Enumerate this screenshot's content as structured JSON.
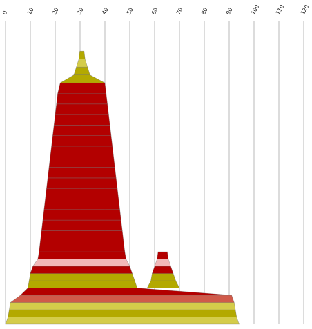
{
  "chart_data": {
    "type": "area",
    "title": "",
    "xlabel": "",
    "ylabel": "",
    "x_axis": {
      "position": "top",
      "min": 0,
      "max": 120,
      "ticks": [
        "0",
        "10",
        "20",
        "30",
        "40",
        "50",
        "60",
        "70",
        "80",
        "90",
        "100",
        "110",
        "120"
      ],
      "tick_label_rotation": -60
    },
    "y_axis": {
      "visible": false,
      "min": 0,
      "max": 16
    },
    "grid": "vertical lines",
    "legend": "none",
    "colors": {
      "dark_red": "#b30000",
      "olive": "#b3a900",
      "light_olive": "#d4cc4a",
      "salmon": "#d05a4a",
      "pink": "#f2b8b8",
      "outline": "#6e6e6e"
    },
    "layers": [
      {
        "level": 1,
        "ranges": [
          [
            0,
            94
          ]
        ],
        "color": "light_olive"
      },
      {
        "level": 2,
        "ranges": [
          [
            1,
            93
          ]
        ],
        "color": "olive"
      },
      {
        "level": 3,
        "ranges": [
          [
            1.5,
            92.5
          ]
        ],
        "color": "light_olive"
      },
      {
        "level": 4,
        "ranges": [
          [
            2,
            92
          ]
        ],
        "color": "salmon"
      },
      {
        "level": 5,
        "ranges": [
          [
            6,
            91
          ]
        ],
        "color": "dark_red"
      },
      {
        "level": 6,
        "ranges": [
          [
            9,
            53
          ],
          [
            57,
            70
          ]
        ],
        "color": "olive"
      },
      {
        "level": 7,
        "ranges": [
          [
            9.5,
            52
          ],
          [
            58.5,
            68.5
          ]
        ],
        "color": "olive"
      },
      {
        "level": 8,
        "ranges": [
          [
            10,
            51
          ],
          [
            59,
            67.5
          ]
        ],
        "color": "dark_red"
      },
      {
        "level": 9,
        "ranges": [
          [
            11,
            50
          ],
          [
            60,
            66.5
          ]
        ],
        "color": "pink"
      },
      {
        "level": 10,
        "ranges": [
          [
            13,
            48.5
          ],
          [
            61,
            65.5
          ]
        ],
        "color": "dark_red"
      },
      {
        "level": 11,
        "ranges": [
          [
            13.5,
            48
          ]
        ],
        "color": "dark_red"
      },
      {
        "level": 12,
        "ranges": [
          [
            14,
            47.5
          ]
        ],
        "color": "dark_red"
      },
      {
        "level": 13,
        "ranges": [
          [
            14.5,
            47
          ]
        ],
        "color": "dark_red"
      },
      {
        "level": 14,
        "ranges": [
          [
            15,
            46.5
          ]
        ],
        "color": "dark_red"
      },
      {
        "level": 15,
        "ranges": [
          [
            15.5,
            46
          ]
        ],
        "color": "dark_red"
      },
      {
        "level": 16,
        "ranges": [
          [
            16,
            45.5
          ]
        ],
        "color": "dark_red"
      },
      {
        "level": 17,
        "ranges": [
          [
            16.5,
            45
          ]
        ],
        "color": "dark_red"
      },
      {
        "level": 18,
        "ranges": [
          [
            17,
            44.5
          ]
        ],
        "color": "dark_red"
      },
      {
        "level": 19,
        "ranges": [
          [
            17.5,
            44
          ]
        ],
        "color": "dark_red"
      },
      {
        "level": 20,
        "ranges": [
          [
            18,
            43.5
          ]
        ],
        "color": "dark_red"
      },
      {
        "level": 21,
        "ranges": [
          [
            18.5,
            43
          ]
        ],
        "color": "dark_red"
      },
      {
        "level": 22,
        "ranges": [
          [
            19,
            42.5
          ]
        ],
        "color": "dark_red"
      },
      {
        "level": 23,
        "ranges": [
          [
            19.5,
            42
          ]
        ],
        "color": "dark_red"
      },
      {
        "level": 24,
        "ranges": [
          [
            20,
            41.5
          ]
        ],
        "color": "dark_red"
      },
      {
        "level": 25,
        "ranges": [
          [
            20.5,
            41
          ]
        ],
        "color": "dark_red"
      },
      {
        "level": 26,
        "ranges": [
          [
            21,
            40.5
          ]
        ],
        "color": "dark_red"
      },
      {
        "level": 27,
        "ranges": [
          [
            22,
            40
          ]
        ],
        "color": "olive"
      },
      {
        "level": 28,
        "ranges": [
          [
            27.5,
            34
          ]
        ],
        "color": "olive"
      },
      {
        "level": 29,
        "ranges": [
          [
            28.5,
            33
          ]
        ],
        "color": "light_olive"
      },
      {
        "level": 30,
        "ranges": [
          [
            29.5,
            32
          ]
        ],
        "color": "olive"
      }
    ]
  }
}
